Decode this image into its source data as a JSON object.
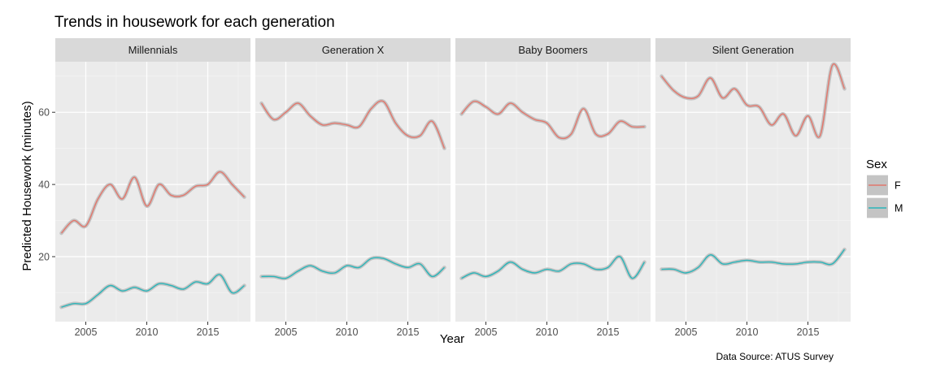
{
  "chart_data": {
    "type": "line",
    "title": "Trends in housework for each generation",
    "xlabel": "Year",
    "ylabel": "Predicted Housework (minutes)",
    "caption": "Data Source: ATUS Survey",
    "xlim": [
      2002.5,
      2018.5
    ],
    "ylim": [
      2,
      74
    ],
    "x_ticks": [
      2005,
      2010,
      2015
    ],
    "x_tick_labels": [
      "2005",
      "2010",
      "2015"
    ],
    "y_ticks": [
      20,
      40,
      60
    ],
    "y_tick_labels": [
      "20",
      "40",
      "60"
    ],
    "grid": true,
    "legend": {
      "title": "Sex",
      "position": "right",
      "entries": [
        "F",
        "M"
      ]
    },
    "colors": {
      "F": "#e2776c",
      "M": "#2ab5b9",
      "ribbon": "#bdbdbd",
      "panel": "#ebebeb",
      "strip": "#d9d9d9"
    },
    "x": [
      2003,
      2004,
      2005,
      2006,
      2007,
      2008,
      2009,
      2010,
      2011,
      2012,
      2013,
      2014,
      2015,
      2016,
      2017,
      2018
    ],
    "panels": [
      {
        "name": "Millennials",
        "series": [
          {
            "name": "F",
            "values": [
              26.5,
              30,
              28.5,
              36,
              40,
              36,
              42,
              34,
              40,
              37,
              37,
              39.5,
              40,
              43.5,
              40,
              36.5
            ]
          },
          {
            "name": "M",
            "values": [
              6,
              7,
              7,
              9.5,
              12,
              10.5,
              11.5,
              10.5,
              12.5,
              12,
              11,
              13,
              12.5,
              15,
              10,
              12
            ]
          }
        ]
      },
      {
        "name": "Generation X",
        "series": [
          {
            "name": "F",
            "values": [
              62.5,
              58,
              60,
              62.5,
              59,
              56.5,
              57,
              56.5,
              56,
              61,
              63,
              57,
              53.5,
              53.5,
              57.5,
              50
            ]
          },
          {
            "name": "M",
            "values": [
              14.5,
              14.5,
              14,
              16,
              17.5,
              16,
              15.5,
              17.5,
              17,
              19.5,
              19.5,
              18,
              17,
              18,
              14.5,
              17
            ]
          }
        ]
      },
      {
        "name": "Baby Boomers",
        "series": [
          {
            "name": "F",
            "values": [
              59.5,
              63,
              61.5,
              59.5,
              62.5,
              60,
              58,
              57,
              53,
              54,
              61,
              54,
              54,
              57.5,
              56,
              56
            ]
          },
          {
            "name": "M",
            "values": [
              14,
              15.5,
              14.5,
              16,
              18.5,
              16.5,
              15.5,
              16.5,
              16,
              18,
              18,
              16.5,
              17,
              20,
              14,
              18.5
            ]
          }
        ]
      },
      {
        "name": "Silent Generation",
        "series": [
          {
            "name": "F",
            "values": [
              70,
              66,
              64,
              64.5,
              69.5,
              64,
              66.5,
              62,
              61.5,
              56.5,
              59.5,
              53.5,
              59,
              53.5,
              73,
              66.5
            ]
          },
          {
            "name": "M",
            "values": [
              16.5,
              16.5,
              15.5,
              17,
              20.5,
              18,
              18.5,
              19,
              18.5,
              18.5,
              18,
              18,
              18.5,
              18.5,
              18,
              22
            ]
          }
        ]
      }
    ]
  }
}
